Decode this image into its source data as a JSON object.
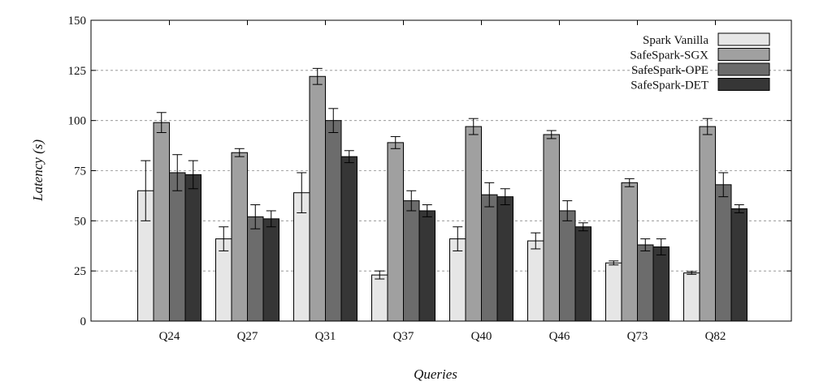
{
  "chart_data": {
    "type": "bar",
    "xlabel": "Queries",
    "ylabel": "Latency (s)",
    "ylim": [
      0,
      150
    ],
    "yticks": [
      0,
      25,
      50,
      75,
      100,
      125,
      150
    ],
    "grid": "horizontal-dashed",
    "legend_position": "top-right",
    "categories": [
      "Q24",
      "Q27",
      "Q31",
      "Q37",
      "Q40",
      "Q46",
      "Q73",
      "Q82"
    ],
    "series": [
      {
        "name": "Spark Vanilla",
        "color": "#e6e6e6",
        "values": [
          65,
          41,
          64,
          23,
          41,
          40,
          29,
          24
        ],
        "errors": [
          15,
          6,
          10,
          2,
          6,
          4,
          1,
          0.7
        ]
      },
      {
        "name": "SafeSpark-SGX",
        "color": "#a0a0a0",
        "values": [
          99,
          84,
          122,
          89,
          97,
          93,
          69,
          97
        ],
        "errors": [
          5,
          2,
          4,
          3,
          4,
          2,
          2,
          4
        ]
      },
      {
        "name": "SafeSpark-OPE",
        "color": "#6c6c6c",
        "values": [
          74,
          52,
          100,
          60,
          63,
          55,
          38,
          68
        ],
        "errors": [
          9,
          6,
          6,
          5,
          6,
          5,
          3,
          6
        ]
      },
      {
        "name": "SafeSpark-DET",
        "color": "#363636",
        "values": [
          73,
          51,
          82,
          55,
          62,
          47,
          37,
          56
        ],
        "errors": [
          7,
          4,
          3,
          3,
          4,
          2,
          4,
          2
        ]
      }
    ]
  }
}
